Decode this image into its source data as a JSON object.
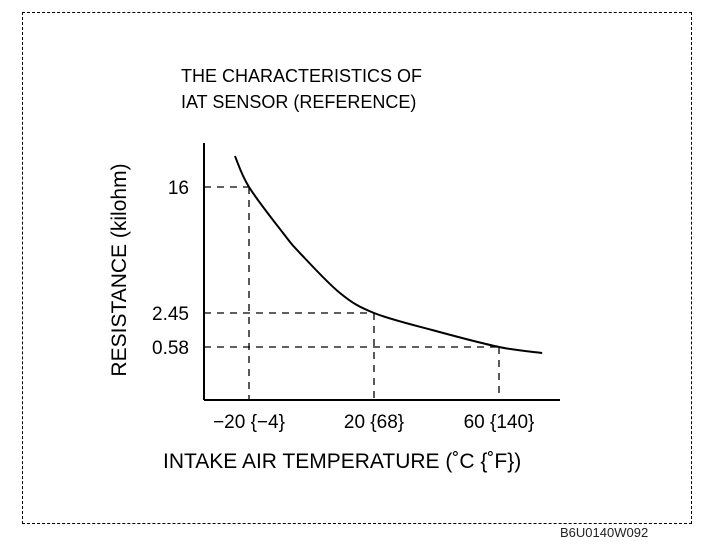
{
  "chart_data": {
    "type": "line",
    "title_lines": [
      "THE CHARACTERISTICS OF",
      "IAT SENSOR (REFERENCE)"
    ],
    "xlabel": "INTAKE AIR TEMPERATURE (˚C {˚F})",
    "ylabel": "RESISTANCE (kilohm)",
    "x_ticks": [
      {
        "value": -20,
        "label": "−20 {−4}"
      },
      {
        "value": 20,
        "label": "20 {68}"
      },
      {
        "value": 60,
        "label": "60 {140}"
      }
    ],
    "y_ticks": [
      {
        "value": 16,
        "label": "16"
      },
      {
        "value": 2.45,
        "label": "2.45"
      },
      {
        "value": 0.58,
        "label": "0.58"
      }
    ],
    "reference_points": [
      {
        "x": -20,
        "y": 16
      },
      {
        "x": 20,
        "y": 2.45
      },
      {
        "x": 60,
        "y": 0.58
      }
    ],
    "series": [
      {
        "name": "IAT sensor resistance",
        "x": [
          -24.5,
          -20,
          -9.1,
          -3.7,
          9.1,
          20,
          38.9,
          60,
          73.8
        ],
        "y": [
          20,
          16,
          11.05,
          8.9,
          4.6,
          2.45,
          1.5,
          0.58,
          0.3
        ]
      }
    ],
    "grid": false,
    "figure_code": "B6U0140W092"
  }
}
